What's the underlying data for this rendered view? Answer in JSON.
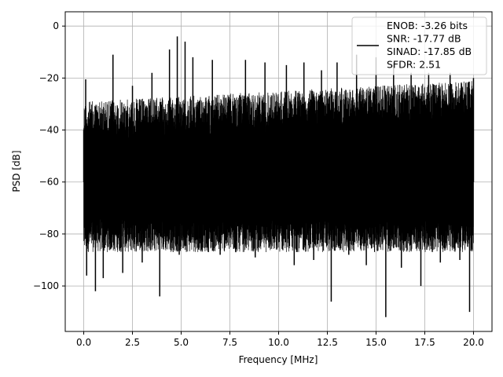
{
  "chart_data": {
    "type": "line",
    "title": "",
    "xlabel": "Frequency [MHz]",
    "ylabel": "PSD [dB]",
    "xlim": [
      -0.95,
      20.95
    ],
    "ylim": [
      -117.5,
      5.5
    ],
    "xticks": [
      0.0,
      2.5,
      5.0,
      7.5,
      10.0,
      12.5,
      15.0,
      17.5,
      20.0
    ],
    "xtick_labels": [
      "0.0",
      "2.5",
      "5.0",
      "7.5",
      "10.0",
      "12.5",
      "15.0",
      "17.5",
      "20.0"
    ],
    "yticks": [
      0,
      -20,
      -40,
      -60,
      -80,
      -100
    ],
    "ytick_labels": [
      "0",
      "−20",
      "−40",
      "−60",
      "−80",
      "−100"
    ],
    "grid": true,
    "legend_position": "top-right",
    "series": [
      {
        "name": "ENOB: -3.26 bits\nSNR: -17.77 dB\nSINAD: -17.85 dB\nSFDR: 2.51",
        "color": "#000000",
        "note": "dense noise floor spanning roughly -80 dB to -20 dB across 0–20 MHz",
        "x": [
          0.0,
          0.1,
          0.15,
          0.6,
          1.0,
          1.5,
          2.0,
          2.5,
          3.0,
          3.5,
          3.9,
          4.4,
          4.8,
          4.9,
          5.2,
          5.6,
          5.9,
          6.6,
          7.0,
          7.3,
          7.8,
          8.3,
          8.8,
          9.3,
          9.9,
          10.4,
          10.8,
          11.3,
          11.8,
          12.2,
          12.7,
          13.0,
          13.6,
          14.0,
          14.5,
          15.0,
          15.5,
          15.9,
          16.3,
          16.8,
          17.3,
          17.7,
          18.3,
          18.8,
          19.3,
          19.8,
          20.0
        ],
        "y": [
          -40,
          -20.5,
          -96,
          -102,
          -97,
          -11,
          -95,
          -23,
          -91,
          -18,
          -104,
          -9,
          -4,
          -88,
          -6,
          -12,
          -86,
          -13,
          -88,
          -59,
          -87,
          -13,
          -89,
          -14,
          -86,
          -15,
          -92,
          -14,
          -90,
          -17,
          -106,
          -14,
          -88,
          -11,
          -92,
          -12,
          -112,
          -14,
          -93,
          -18,
          -100,
          -18,
          -91,
          -18,
          -90,
          -110,
          -20
        ]
      }
    ]
  }
}
